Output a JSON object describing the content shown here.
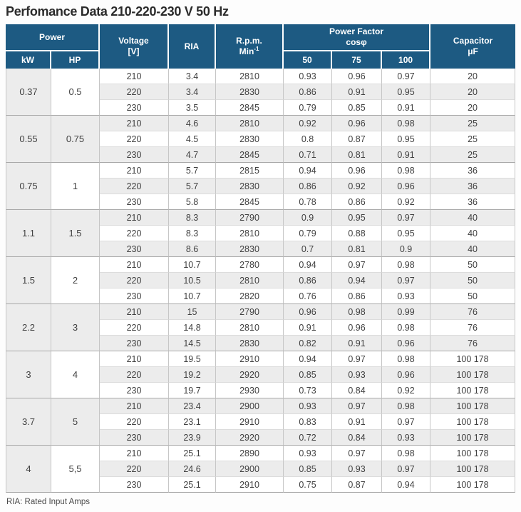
{
  "title": "Perfomance Data 210-220-230 V 50 Hz",
  "footer": "RIA: Rated Input Amps",
  "colors": {
    "header_bg": "#1d5a82",
    "header_text": "#ffffff",
    "stripe_row": "#ececec",
    "body_text": "#414141",
    "group_separator": "#a9a9a9"
  },
  "table": {
    "header": {
      "power": "Power",
      "kw": "kW",
      "hp": "HP",
      "voltage_line1": "Voltage",
      "voltage_line2": "[V]",
      "ria": "RIA",
      "rpm_line1": "R.p.m.",
      "rpm_line2": "Min",
      "rpm_sup": "-1",
      "pf_line1": "Power Factor",
      "pf_line2": "cosφ",
      "pf_50": "50",
      "pf_75": "75",
      "pf_100": "100",
      "cap_line1": "Capacitor",
      "cap_line2": "μF"
    },
    "column_names": [
      "voltage",
      "ria",
      "rpm",
      "pf50",
      "pf75",
      "pf100",
      "capacitor"
    ],
    "groups": [
      {
        "kw": "0.37",
        "hp": "0.5",
        "rows": [
          [
            "210",
            "3.4",
            "2810",
            "0.93",
            "0.96",
            "0.97",
            "20"
          ],
          [
            "220",
            "3.4",
            "2830",
            "0.86",
            "0.91",
            "0.95",
            "20"
          ],
          [
            "230",
            "3.5",
            "2845",
            "0.79",
            "0.85",
            "0.91",
            "20"
          ]
        ]
      },
      {
        "kw": "0.55",
        "hp": "0.75",
        "rows": [
          [
            "210",
            "4.6",
            "2810",
            "0.92",
            "0.96",
            "0.98",
            "25"
          ],
          [
            "220",
            "4.5",
            "2830",
            "0.8",
            "0.87",
            "0.95",
            "25"
          ],
          [
            "230",
            "4.7",
            "2845",
            "0.71",
            "0.81",
            "0.91",
            "25"
          ]
        ]
      },
      {
        "kw": "0.75",
        "hp": "1",
        "rows": [
          [
            "210",
            "5.7",
            "2815",
            "0.94",
            "0.96",
            "0.98",
            "36"
          ],
          [
            "220",
            "5.7",
            "2830",
            "0.86",
            "0.92",
            "0.96",
            "36"
          ],
          [
            "230",
            "5.8",
            "2845",
            "0.78",
            "0.86",
            "0.92",
            "36"
          ]
        ]
      },
      {
        "kw": "1.1",
        "hp": "1.5",
        "rows": [
          [
            "210",
            "8.3",
            "2790",
            "0.9",
            "0.95",
            "0.97",
            "40"
          ],
          [
            "220",
            "8.3",
            "2810",
            "0.79",
            "0.88",
            "0.95",
            "40"
          ],
          [
            "230",
            "8.6",
            "2830",
            "0.7",
            "0.81",
            "0.9",
            "40"
          ]
        ]
      },
      {
        "kw": "1.5",
        "hp": "2",
        "rows": [
          [
            "210",
            "10.7",
            "2780",
            "0.94",
            "0.97",
            "0.98",
            "50"
          ],
          [
            "220",
            "10.5",
            "2810",
            "0.86",
            "0.94",
            "0.97",
            "50"
          ],
          [
            "230",
            "10.7",
            "2820",
            "0.76",
            "0.86",
            "0.93",
            "50"
          ]
        ]
      },
      {
        "kw": "2.2",
        "hp": "3",
        "rows": [
          [
            "210",
            "15",
            "2790",
            "0.96",
            "0.98",
            "0.99",
            "76"
          ],
          [
            "220",
            "14.8",
            "2810",
            "0.91",
            "0.96",
            "0.98",
            "76"
          ],
          [
            "230",
            "14.5",
            "2830",
            "0.82",
            "0.91",
            "0.96",
            "76"
          ]
        ]
      },
      {
        "kw": "3",
        "hp": "4",
        "rows": [
          [
            "210",
            "19.5",
            "2910",
            "0.94",
            "0.97",
            "0.98",
            "100 178"
          ],
          [
            "220",
            "19.2",
            "2920",
            "0.85",
            "0.93",
            "0.96",
            "100 178"
          ],
          [
            "230",
            "19.7",
            "2930",
            "0.73",
            "0.84",
            "0.92",
            "100 178"
          ]
        ]
      },
      {
        "kw": "3.7",
        "hp": "5",
        "rows": [
          [
            "210",
            "23.4",
            "2900",
            "0.93",
            "0.97",
            "0.98",
            "100 178"
          ],
          [
            "220",
            "23.1",
            "2910",
            "0.83",
            "0.91",
            "0.97",
            "100 178"
          ],
          [
            "230",
            "23.9",
            "2920",
            "0.72",
            "0.84",
            "0.93",
            "100 178"
          ]
        ]
      },
      {
        "kw": "4",
        "hp": "5,5",
        "rows": [
          [
            "210",
            "25.1",
            "2890",
            "0.93",
            "0.97",
            "0.98",
            "100 178"
          ],
          [
            "220",
            "24.6",
            "2900",
            "0.85",
            "0.93",
            "0.97",
            "100 178"
          ],
          [
            "230",
            "25.1",
            "2910",
            "0.75",
            "0.87",
            "0.94",
            "100 178"
          ]
        ]
      }
    ]
  }
}
